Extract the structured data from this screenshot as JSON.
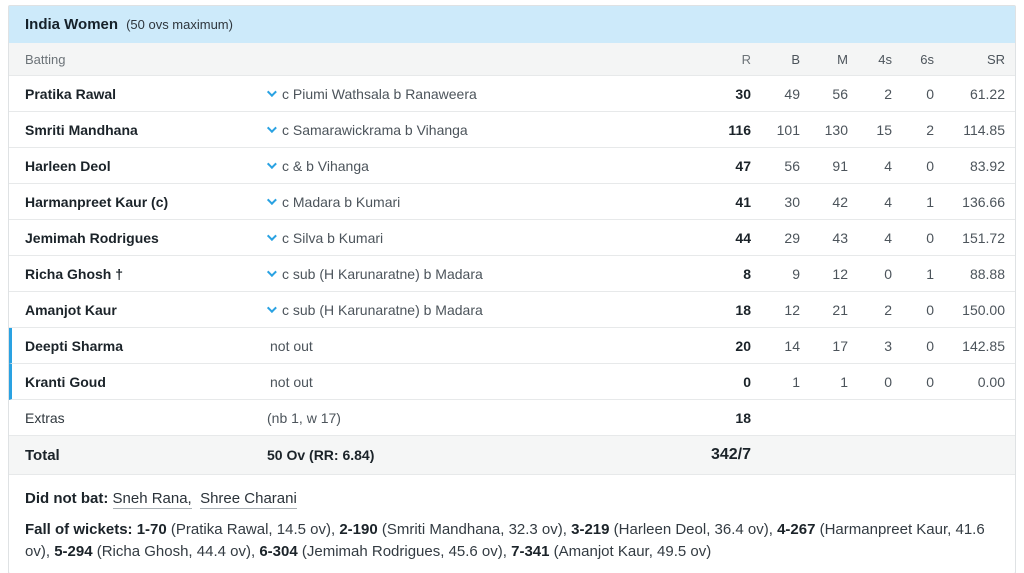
{
  "header": {
    "team": "India Women",
    "note": "(50 ovs maximum)"
  },
  "columns": {
    "batting": "Batting",
    "r": "R",
    "b": "B",
    "m": "M",
    "fours": "4s",
    "sixes": "6s",
    "sr": "SR"
  },
  "batting_rows": [
    {
      "name": "Pratika Rawal",
      "dismissal": "c Piumi Wathsala b Ranaweera",
      "out": true,
      "r": "30",
      "b": "49",
      "m": "56",
      "fours": "2",
      "sixes": "0",
      "sr": "61.22"
    },
    {
      "name": "Smriti Mandhana",
      "dismissal": "c Samarawickrama b Vihanga",
      "out": true,
      "r": "116",
      "b": "101",
      "m": "130",
      "fours": "15",
      "sixes": "2",
      "sr": "114.85"
    },
    {
      "name": "Harleen Deol",
      "dismissal": "c & b Vihanga",
      "out": true,
      "r": "47",
      "b": "56",
      "m": "91",
      "fours": "4",
      "sixes": "0",
      "sr": "83.92"
    },
    {
      "name": "Harmanpreet Kaur (c)",
      "dismissal": "c Madara b Kumari",
      "out": true,
      "r": "41",
      "b": "30",
      "m": "42",
      "fours": "4",
      "sixes": "1",
      "sr": "136.66"
    },
    {
      "name": "Jemimah Rodrigues",
      "dismissal": "c Silva b Kumari",
      "out": true,
      "r": "44",
      "b": "29",
      "m": "43",
      "fours": "4",
      "sixes": "0",
      "sr": "151.72"
    },
    {
      "name": "Richa Ghosh †",
      "dismissal": "c sub (H Karunaratne) b Madara",
      "out": true,
      "r": "8",
      "b": "9",
      "m": "12",
      "fours": "0",
      "sixes": "1",
      "sr": "88.88"
    },
    {
      "name": "Amanjot Kaur",
      "dismissal": "c sub (H Karunaratne) b Madara",
      "out": true,
      "r": "18",
      "b": "12",
      "m": "21",
      "fours": "2",
      "sixes": "0",
      "sr": "150.00"
    },
    {
      "name": "Deepti Sharma",
      "dismissal": "not out",
      "out": false,
      "r": "20",
      "b": "14",
      "m": "17",
      "fours": "3",
      "sixes": "0",
      "sr": "142.85"
    },
    {
      "name": "Kranti Goud",
      "dismissal": "not out",
      "out": false,
      "r": "0",
      "b": "1",
      "m": "1",
      "fours": "0",
      "sixes": "0",
      "sr": "0.00"
    }
  ],
  "extras": {
    "label": "Extras",
    "detail": "(nb 1, w 17)",
    "runs": "18"
  },
  "total": {
    "label": "Total",
    "detail": "50 Ov (RR: 6.84)",
    "score": "342/7"
  },
  "did_not_bat": {
    "label": "Did not bat:",
    "players": [
      "Sneh Rana,",
      "Shree Charani"
    ]
  },
  "fall_of_wickets": {
    "label": "Fall of wickets:",
    "wickets": [
      {
        "score": "1-70",
        "detail": " (Pratika Rawal, 14.5 ov), "
      },
      {
        "score": "2-190",
        "detail": " (Smriti Mandhana, 32.3 ov), "
      },
      {
        "score": "3-219",
        "detail": " (Harleen Deol, 36.4 ov), "
      },
      {
        "score": "4-267",
        "detail": " (Harmanpreet Kaur, 41.6 ov), "
      },
      {
        "score": "5-294",
        "detail": " (Richa Ghosh, 44.4 ov), "
      },
      {
        "score": "6-304",
        "detail": " (Jemimah Rodrigues, 45.6 ov), "
      },
      {
        "score": "7-341",
        "detail": " (Amanjot Kaur, 49.5 ov)"
      }
    ]
  },
  "colors": {
    "header_bg": "#cdeafa",
    "accent_blue": "#2aa2e2"
  }
}
